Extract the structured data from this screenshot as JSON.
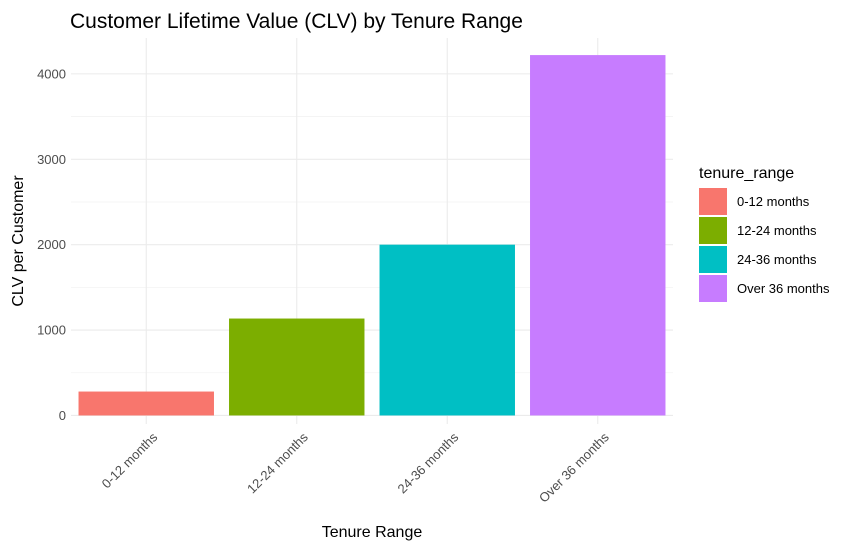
{
  "chart_data": {
    "type": "bar",
    "title": "Customer Lifetime Value (CLV) by Tenure Range",
    "xlabel": "Tenure Range",
    "ylabel": "CLV per Customer",
    "categories": [
      "0-12 months",
      "12-24 months",
      "24-36 months",
      "Over 36 months"
    ],
    "values": [
      280,
      1135,
      2000,
      4220
    ],
    "colors": [
      "#F8766D",
      "#7CAE00",
      "#00BFC4",
      "#C77CFF"
    ],
    "ylim": [
      -100,
      4420
    ],
    "yticks": [
      0,
      1000,
      2000,
      3000,
      4000
    ],
    "ytick_labels": [
      "0",
      "1000",
      "2000",
      "3000",
      "4000"
    ],
    "grid": true,
    "legend": {
      "title": "tenure_range",
      "placement": "right",
      "entries": [
        "0-12 months",
        "12-24 months",
        "24-36 months",
        "Over 36 months"
      ]
    }
  }
}
